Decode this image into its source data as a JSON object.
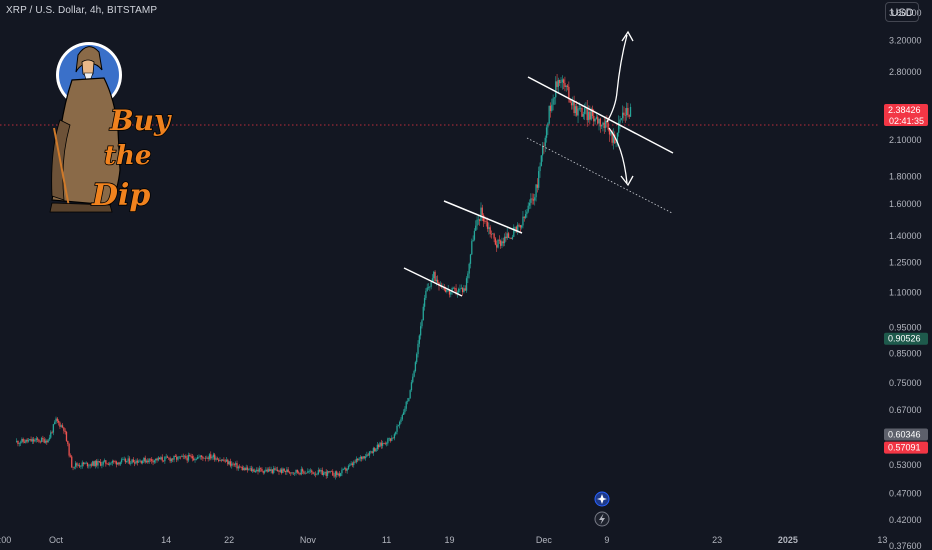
{
  "header": {
    "symbol_title": "XRP / U.S. Dollar, 4h, BITSTAMP",
    "currency_button": "USD"
  },
  "mascot": {
    "lines": [
      "Buy",
      "the",
      "Dip"
    ]
  },
  "colors": {
    "up": "#26a69a",
    "down": "#ef5350",
    "current": "#f23645",
    "background": "#131722"
  },
  "chart_data": {
    "type": "candlestick",
    "scale": "log",
    "ylim": [
      0.37,
      3.8
    ],
    "y_ticks": [
      "0.37600",
      "0.42000",
      "0.47000",
      "0.53000",
      "0.60000",
      "0.67000",
      "0.75000",
      "0.85000",
      "0.95000",
      "1.10000",
      "1.25000",
      "1.40000",
      "1.60000",
      "1.80000",
      "2.10000",
      "2.40000",
      "2.80000",
      "3.20000",
      "3.60000"
    ],
    "x_ticks": [
      ":00",
      "Oct",
      "14",
      "22",
      "Nov",
      "11",
      "19",
      "Dec",
      "9",
      "23",
      "2025",
      "13"
    ],
    "price_badges": [
      {
        "value": "2.38426",
        "sub": "02:41:35",
        "color": "#f23645"
      },
      {
        "value": "0.90526",
        "color": "#1e5a4c"
      },
      {
        "value": "0.60346",
        "color": "#5d606b"
      },
      {
        "value": "0.57091",
        "color": "#f23645"
      }
    ],
    "anchors": [
      [
        "2024-09-25",
        0.585
      ],
      [
        "2024-09-29",
        0.59
      ],
      [
        "2024-09-30",
        0.64
      ],
      [
        "2024-10-01",
        0.62
      ],
      [
        "2024-10-02",
        0.53
      ],
      [
        "2024-10-10",
        0.54
      ],
      [
        "2024-10-20",
        0.55
      ],
      [
        "2024-10-24",
        0.52
      ],
      [
        "2024-11-01",
        0.515
      ],
      [
        "2024-11-05",
        0.51
      ],
      [
        "2024-11-08",
        0.55
      ],
      [
        "2024-11-12",
        0.6
      ],
      [
        "2024-11-14",
        0.72
      ],
      [
        "2024-11-16",
        1.1
      ],
      [
        "2024-11-17",
        1.18
      ],
      [
        "2024-11-19",
        1.1
      ],
      [
        "2024-11-21",
        1.12
      ],
      [
        "2024-11-22",
        1.4
      ],
      [
        "2024-11-23",
        1.55
      ],
      [
        "2024-11-25",
        1.35
      ],
      [
        "2024-11-28",
        1.45
      ],
      [
        "2024-11-30",
        1.7
      ],
      [
        "2024-12-01",
        2.1
      ],
      [
        "2024-12-02",
        2.5
      ],
      [
        "2024-12-03",
        2.75
      ],
      [
        "2024-12-05",
        2.4
      ],
      [
        "2024-12-08",
        2.3
      ],
      [
        "2024-12-10",
        2.1
      ],
      [
        "2024-12-11",
        2.35
      ],
      [
        "2024-12-12",
        2.38
      ]
    ]
  }
}
